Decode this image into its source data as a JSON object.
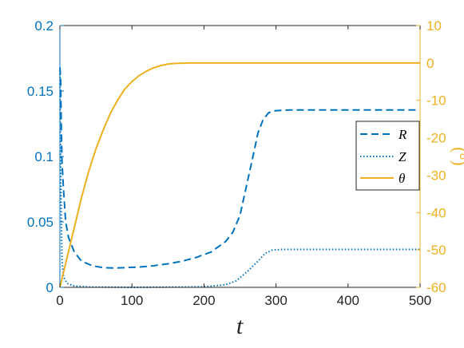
{
  "chart_data": {
    "type": "line",
    "xlabel": "t",
    "xlim": [
      0,
      500
    ],
    "xticks": [
      "0",
      "100",
      "200",
      "300",
      "400",
      "500"
    ],
    "left_axis": {
      "ylim": [
        0,
        0.2
      ],
      "ticks": [
        "0",
        "0.05",
        "0.1",
        "0.15",
        "0.2"
      ],
      "color": "#0072BD"
    },
    "right_axis": {
      "ylabel": "(°)",
      "ylim": [
        -60,
        10
      ],
      "ticks": [
        "-60",
        "-50",
        "-40",
        "-30",
        "-20",
        "-10",
        "0",
        "10"
      ],
      "color": "#EDB120"
    },
    "legend": {
      "position": "right",
      "entries": [
        "R",
        "Z",
        "θ"
      ]
    },
    "series": [
      {
        "name": "R",
        "axis": "left",
        "style": "dashed",
        "color": "#0072BD",
        "points": [
          [
            0,
            0.168
          ],
          [
            1,
            0.16
          ],
          [
            2,
            0.12
          ],
          [
            3,
            0.095
          ],
          [
            5,
            0.075
          ],
          [
            8,
            0.05
          ],
          [
            12,
            0.038
          ],
          [
            20,
            0.027
          ],
          [
            30,
            0.02
          ],
          [
            45,
            0.0165
          ],
          [
            60,
            0.015
          ],
          [
            75,
            0.0148
          ],
          [
            90,
            0.015
          ],
          [
            110,
            0.0155
          ],
          [
            130,
            0.0165
          ],
          [
            150,
            0.018
          ],
          [
            170,
            0.02
          ],
          [
            190,
            0.023
          ],
          [
            210,
            0.027
          ],
          [
            230,
            0.035
          ],
          [
            240,
            0.042
          ],
          [
            250,
            0.055
          ],
          [
            260,
            0.08
          ],
          [
            268,
            0.1
          ],
          [
            275,
            0.118
          ],
          [
            282,
            0.128
          ],
          [
            290,
            0.1335
          ],
          [
            300,
            0.135
          ],
          [
            320,
            0.1355
          ],
          [
            500,
            0.1355
          ]
        ]
      },
      {
        "name": "Z",
        "axis": "left",
        "style": "dotted",
        "color": "#0072BD",
        "points": [
          [
            0,
            0.168
          ],
          [
            1,
            0.1
          ],
          [
            2,
            0.05
          ],
          [
            3,
            0.02
          ],
          [
            5,
            0.008
          ],
          [
            10,
            0.003
          ],
          [
            20,
            0.001
          ],
          [
            40,
            0.0003
          ],
          [
            100,
            0.0
          ],
          [
            200,
            0.0004
          ],
          [
            230,
            0.002
          ],
          [
            245,
            0.005
          ],
          [
            260,
            0.012
          ],
          [
            275,
            0.02
          ],
          [
            285,
            0.026
          ],
          [
            295,
            0.0285
          ],
          [
            310,
            0.029
          ],
          [
            350,
            0.029
          ],
          [
            500,
            0.029
          ]
        ]
      },
      {
        "name": "θ",
        "axis": "right",
        "style": "solid",
        "color": "#EDB120",
        "points": [
          [
            0,
            -60
          ],
          [
            10,
            -52
          ],
          [
            20,
            -44
          ],
          [
            30,
            -36
          ],
          [
            40,
            -29
          ],
          [
            50,
            -23
          ],
          [
            60,
            -18
          ],
          [
            70,
            -13.5
          ],
          [
            80,
            -10
          ],
          [
            90,
            -7
          ],
          [
            100,
            -5
          ],
          [
            110,
            -3.4
          ],
          [
            120,
            -2.2
          ],
          [
            130,
            -1.3
          ],
          [
            140,
            -0.7
          ],
          [
            150,
            -0.3
          ],
          [
            160,
            -0.1
          ],
          [
            180,
            0
          ],
          [
            500,
            0
          ]
        ]
      }
    ]
  }
}
